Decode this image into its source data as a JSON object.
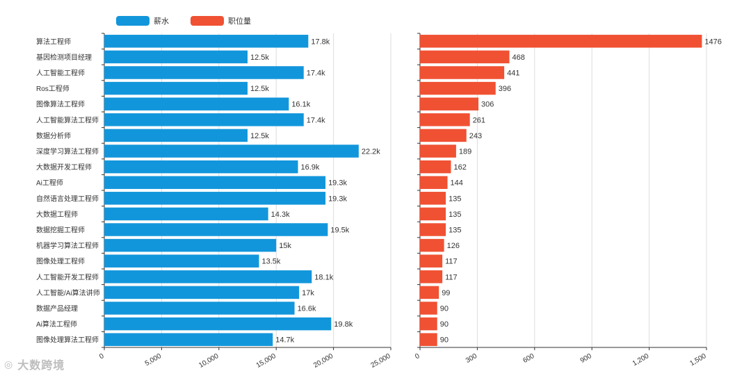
{
  "legend": {
    "salary_label": "薪水",
    "count_label": "职位量"
  },
  "colors": {
    "salary": "#1296db",
    "count": "#f05133",
    "axis": "#333333",
    "grid": "#dddddd"
  },
  "watermark": {
    "corner_text": "大数跨境",
    "corner_icon": "weibo-style-icon"
  },
  "chart_data": [
    {
      "type": "bar",
      "orientation": "horizontal",
      "series_name": "薪水",
      "categories": [
        "算法工程师",
        "基因检测项目经理",
        "人工智能工程师",
        "Ros工程师",
        "图像算法工程师",
        "人工智能算法工程师",
        "数据分析师",
        "深度学习算法工程师",
        "大数据开发工程师",
        "Ai工程师",
        "自然语言处理工程师",
        "大数据工程师",
        "数据挖掘工程师",
        "机器学习算法工程师",
        "图像处理工程师",
        "人工智能开发工程师",
        "人工智能/Ai算法讲师",
        "数据产品经理",
        "Ai算法工程师",
        "图像处理算法工程师"
      ],
      "values": [
        17800,
        12500,
        17400,
        12500,
        16100,
        17400,
        12500,
        22200,
        16900,
        19300,
        19300,
        14300,
        19500,
        15000,
        13500,
        18100,
        17000,
        16600,
        19800,
        14700
      ],
      "value_labels": [
        "17.8k",
        "12.5k",
        "17.4k",
        "12.5k",
        "16.1k",
        "17.4k",
        "12.5k",
        "22.2k",
        "16.9k",
        "19.3k",
        "19.3k",
        "14.3k",
        "19.5k",
        "15k",
        "13.5k",
        "18.1k",
        "17k",
        "16.6k",
        "19.8k",
        "14.7k"
      ],
      "xlim": [
        0,
        25000
      ],
      "ticks": [
        0,
        5000,
        10000,
        15000,
        20000,
        25000
      ],
      "tick_labels": [
        "0",
        "5,000",
        "10,000",
        "15,000",
        "20,000",
        "25,000"
      ]
    },
    {
      "type": "bar",
      "orientation": "horizontal",
      "series_name": "职位量",
      "categories": [
        "算法工程师",
        "基因检测项目经理",
        "人工智能工程师",
        "Ros工程师",
        "图像算法工程师",
        "人工智能算法工程师",
        "数据分析师",
        "深度学习算法工程师",
        "大数据开发工程师",
        "Ai工程师",
        "自然语言处理工程师",
        "大数据工程师",
        "数据挖掘工程师",
        "机器学习算法工程师",
        "图像处理工程师",
        "人工智能开发工程师",
        "人工智能/Ai算法讲师",
        "数据产品经理",
        "Ai算法工程师",
        "图像处理算法工程师"
      ],
      "values": [
        1476,
        468,
        441,
        396,
        306,
        261,
        243,
        189,
        162,
        144,
        135,
        135,
        135,
        126,
        117,
        117,
        99,
        90,
        90,
        90
      ],
      "value_labels": [
        "1476",
        "468",
        "441",
        "396",
        "306",
        "261",
        "243",
        "189",
        "162",
        "144",
        "135",
        "135",
        "135",
        "126",
        "117",
        "117",
        "99",
        "90",
        "90",
        "90"
      ],
      "xlim": [
        0,
        1500
      ],
      "ticks": [
        0,
        300,
        600,
        900,
        1200,
        1500
      ],
      "tick_labels": [
        "0",
        "300",
        "600",
        "900",
        "1,200",
        "1,500"
      ]
    }
  ]
}
